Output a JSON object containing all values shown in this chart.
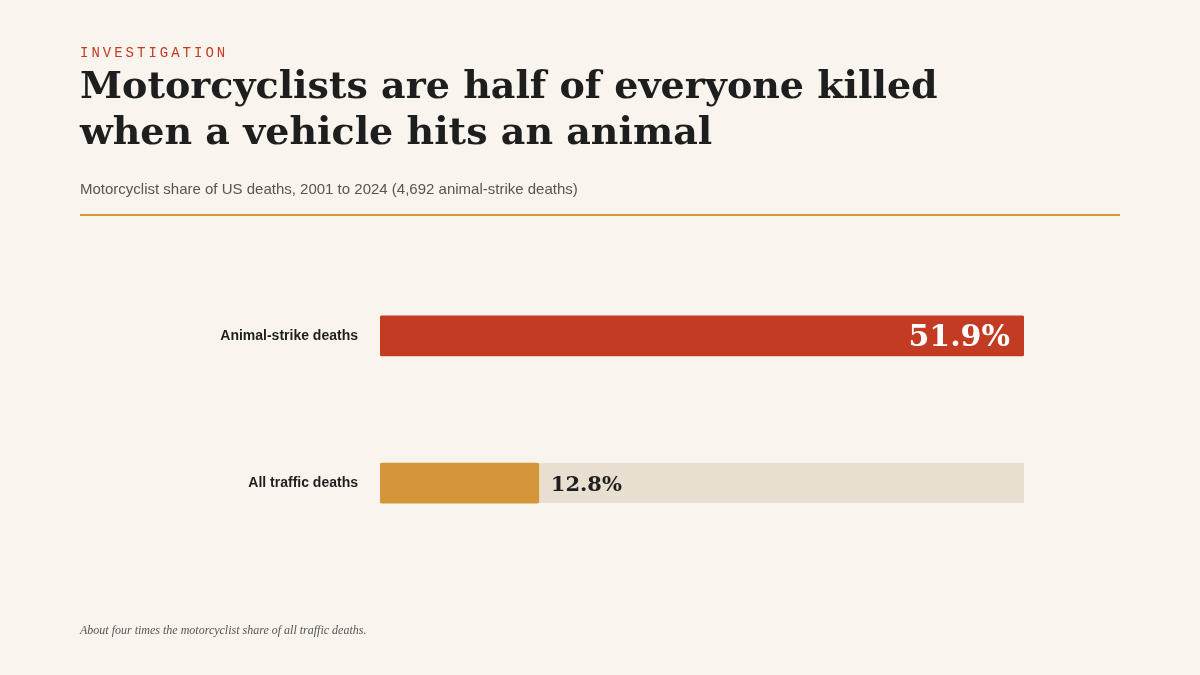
{
  "chart_data": {
    "type": "bar",
    "orientation": "horizontal",
    "title": "Motorcyclists are half of everyone killed when a vehicle hits an animal",
    "subtitle": "Motorcyclist share of US deaths, 2001 to 2024 (4,692 animal-strike deaths)",
    "categories": [
      "Animal-strike deaths",
      "All traffic deaths"
    ],
    "values": [
      51.9,
      12.8
    ],
    "colors": [
      "#c23b22",
      "#d4963a"
    ],
    "value_labels": [
      "51.9%",
      "12.8%"
    ],
    "annotations": [
      "INVESTIGATION",
      "About four times the motorcyclist share of all traffic deaths."
    ]
  }
}
